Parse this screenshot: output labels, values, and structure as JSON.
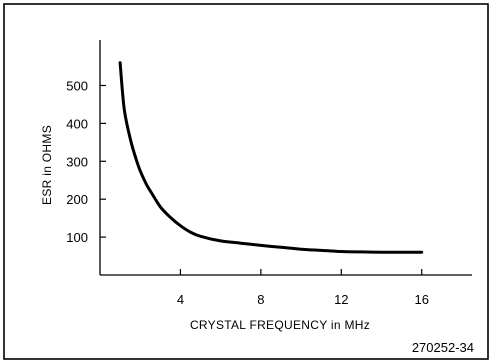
{
  "chart_data": {
    "type": "line",
    "xlabel": "CRYSTAL FREQUENCY in MHz",
    "ylabel": "ESR in OHMS",
    "xlim": [
      0,
      18.5
    ],
    "ylim": [
      0,
      620
    ],
    "xticks": [
      4,
      8,
      12,
      16
    ],
    "yticks": [
      100,
      200,
      300,
      400,
      500
    ],
    "grid": false,
    "series": [
      {
        "x": [
          1.0,
          1.2,
          1.5,
          1.8,
          2.0,
          2.3,
          2.5,
          3.0,
          3.5,
          4.0,
          4.5,
          5.0,
          6.0,
          7.0,
          8.0,
          9.0,
          10.0,
          11.0,
          12.0,
          13.0,
          14.0,
          15.0,
          16.0
        ],
        "y": [
          560,
          440,
          360,
          305,
          275,
          240,
          222,
          180,
          152,
          130,
          113,
          102,
          90,
          84,
          78,
          73,
          68,
          65,
          62,
          61,
          60,
          60,
          60
        ],
        "color": "#000000"
      }
    ]
  },
  "figure_id": "270252-34"
}
